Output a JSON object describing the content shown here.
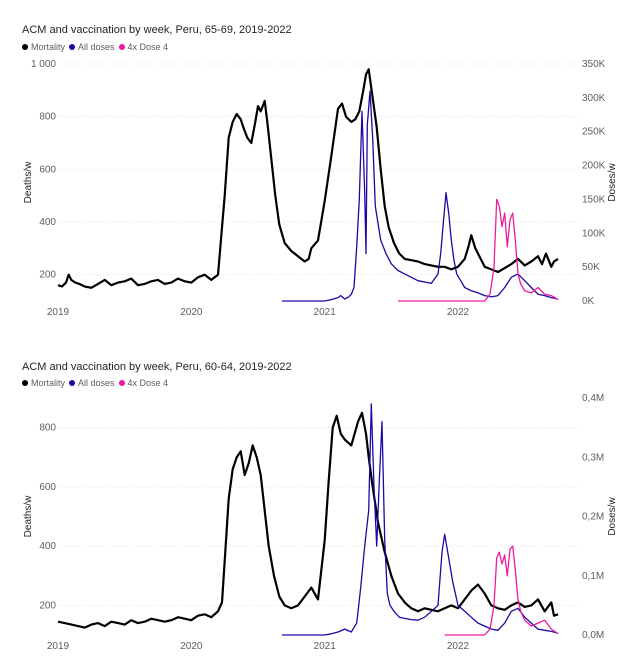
{
  "colors": {
    "mortality": "#000000",
    "all_doses": "#1a0aa3",
    "dose4": "#ec1ba0",
    "grid": "#e2e2e2",
    "text": "#605e5c"
  },
  "chart_data": [
    {
      "type": "line",
      "title": "ACM and vaccination by week, Peru, 65-69, 2019-2022",
      "ylabel": "Deaths/w",
      "y2label": "Doses/w",
      "ylim": [
        100,
        1000
      ],
      "y2lim": [
        0,
        350000
      ],
      "yticks": [
        200,
        400,
        600,
        800,
        1000
      ],
      "ytick_labels": [
        "200",
        "400",
        "600",
        "800",
        "1 000"
      ],
      "y2ticks": [
        0,
        50000,
        100000,
        150000,
        200000,
        250000,
        300000,
        350000
      ],
      "y2tick_labels": [
        "0K",
        "50K",
        "100K",
        "150K",
        "200K",
        "250K",
        "300K",
        "350K"
      ],
      "xlim": [
        2019.0,
        2022.9
      ],
      "xticks": [
        2019,
        2020,
        2021,
        2022
      ],
      "xtick_labels": [
        "2019",
        "2020",
        "2021",
        "2022"
      ],
      "grid": true,
      "legend_position": "top-left",
      "legend": [
        "Mortality",
        "All doses",
        "4x Dose 4"
      ],
      "series": [
        {
          "name": "Mortality",
          "axis": "left",
          "color": "#000000",
          "x": [
            2019.0,
            2019.03,
            2019.06,
            2019.08,
            2019.1,
            2019.13,
            2019.16,
            2019.2,
            2019.25,
            2019.3,
            2019.35,
            2019.4,
            2019.45,
            2019.5,
            2019.55,
            2019.6,
            2019.65,
            2019.7,
            2019.75,
            2019.8,
            2019.85,
            2019.9,
            2019.95,
            2020.0,
            2020.05,
            2020.1,
            2020.15,
            2020.2,
            2020.25,
            2020.28,
            2020.31,
            2020.34,
            2020.37,
            2020.39,
            2020.42,
            2020.45,
            2020.48,
            2020.5,
            2020.52,
            2020.55,
            2020.57,
            2020.6,
            2020.63,
            2020.66,
            2020.7,
            2020.75,
            2020.8,
            2020.85,
            2020.88,
            2020.9,
            2020.95,
            2021.0,
            2021.05,
            2021.1,
            2021.13,
            2021.16,
            2021.2,
            2021.23,
            2021.26,
            2021.29,
            2021.31,
            2021.33,
            2021.36,
            2021.39,
            2021.42,
            2021.45,
            2021.48,
            2021.52,
            2021.56,
            2021.6,
            2021.65,
            2021.7,
            2021.75,
            2021.8,
            2021.85,
            2021.9,
            2021.95,
            2022.0,
            2022.05,
            2022.08,
            2022.1,
            2022.13,
            2022.17,
            2022.2,
            2022.25,
            2022.3,
            2022.35,
            2022.4,
            2022.45,
            2022.5,
            2022.55,
            2022.6,
            2022.63,
            2022.66,
            2022.7,
            2022.72,
            2022.75
          ],
          "values": [
            160,
            155,
            170,
            200,
            180,
            170,
            165,
            155,
            150,
            165,
            180,
            160,
            170,
            175,
            185,
            160,
            165,
            175,
            180,
            165,
            170,
            185,
            175,
            170,
            190,
            200,
            180,
            200,
            500,
            720,
            780,
            810,
            790,
            760,
            720,
            700,
            780,
            840,
            820,
            860,
            780,
            640,
            500,
            390,
            320,
            290,
            270,
            250,
            260,
            300,
            330,
            480,
            650,
            830,
            850,
            800,
            780,
            790,
            820,
            900,
            960,
            980,
            870,
            760,
            600,
            460,
            380,
            320,
            280,
            260,
            255,
            250,
            240,
            235,
            230,
            230,
            220,
            230,
            260,
            310,
            350,
            300,
            260,
            230,
            220,
            210,
            225,
            240,
            260,
            235,
            250,
            270,
            240,
            280,
            230,
            250,
            260
          ]
        },
        {
          "name": "All doses",
          "axis": "right",
          "color": "#1a0aa3",
          "x": [
            2020.68,
            2020.8,
            2020.9,
            2021.0,
            2021.05,
            2021.1,
            2021.12,
            2021.15,
            2021.18,
            2021.2,
            2021.22,
            2021.24,
            2021.26,
            2021.28,
            2021.3,
            2021.31,
            2021.32,
            2021.34,
            2021.36,
            2021.38,
            2021.42,
            2021.46,
            2021.5,
            2021.55,
            2021.6,
            2021.65,
            2021.7,
            2021.75,
            2021.8,
            2021.85,
            2021.87,
            2021.89,
            2021.91,
            2021.93,
            2021.95,
            2021.97,
            2021.99,
            2022.02,
            2022.05,
            2022.1,
            2022.15,
            2022.2,
            2022.25,
            2022.3,
            2022.35,
            2022.4,
            2022.45,
            2022.5,
            2022.55,
            2022.6,
            2022.65,
            2022.7,
            2022.75
          ],
          "values": [
            0,
            0,
            0,
            0,
            2000,
            5000,
            8000,
            3000,
            6000,
            10000,
            20000,
            80000,
            150000,
            280000,
            160000,
            70000,
            260000,
            310000,
            240000,
            140000,
            90000,
            70000,
            55000,
            45000,
            40000,
            35000,
            30000,
            28000,
            26000,
            40000,
            70000,
            115000,
            160000,
            130000,
            90000,
            60000,
            40000,
            30000,
            20000,
            15000,
            12000,
            8000,
            6000,
            8000,
            20000,
            35000,
            40000,
            30000,
            20000,
            10000,
            8000,
            5000,
            3000
          ]
        },
        {
          "name": "4x Dose 4",
          "axis": "right",
          "color": "#ec1ba0",
          "x": [
            2021.55,
            2021.7,
            2021.85,
            2022.0,
            2022.1,
            2022.2,
            2022.24,
            2022.27,
            2022.29,
            2022.31,
            2022.33,
            2022.35,
            2022.37,
            2022.39,
            2022.41,
            2022.43,
            2022.45,
            2022.47,
            2022.5,
            2022.55,
            2022.6,
            2022.65,
            2022.7,
            2022.75
          ],
          "values": [
            0,
            0,
            0,
            0,
            0,
            0,
            10000,
            50000,
            150000,
            140000,
            110000,
            130000,
            80000,
            120000,
            130000,
            90000,
            40000,
            25000,
            15000,
            12000,
            20000,
            10000,
            8000,
            2000
          ]
        }
      ]
    },
    {
      "type": "line",
      "title": "ACM and vaccination by week, Peru, 60-64, 2019-2022",
      "ylabel": "Deaths/w",
      "y2label": "Doses/w",
      "ylim": [
        100,
        900
      ],
      "y2lim": [
        0,
        400000
      ],
      "yticks": [
        200,
        400,
        600,
        800
      ],
      "ytick_labels": [
        "200",
        "400",
        "600",
        "800"
      ],
      "y2ticks": [
        0,
        100000,
        200000,
        300000,
        400000
      ],
      "y2tick_labels": [
        "0,0M",
        "0,1M",
        "0,2M",
        "0,3M",
        "0,4M"
      ],
      "xlim": [
        2019.0,
        2022.9
      ],
      "xticks": [
        2019,
        2020,
        2021,
        2022
      ],
      "xtick_labels": [
        "2019",
        "2020",
        "2021",
        "2022"
      ],
      "grid": true,
      "legend_position": "top-left",
      "legend": [
        "Mortality",
        "All doses",
        "4x Dose 4"
      ],
      "series": [
        {
          "name": "Mortality",
          "axis": "left",
          "color": "#000000",
          "x": [
            2019.0,
            2019.05,
            2019.1,
            2019.15,
            2019.2,
            2019.25,
            2019.3,
            2019.35,
            2019.4,
            2019.45,
            2019.5,
            2019.55,
            2019.6,
            2019.65,
            2019.7,
            2019.75,
            2019.8,
            2019.85,
            2019.9,
            2019.95,
            2020.0,
            2020.05,
            2020.1,
            2020.15,
            2020.2,
            2020.23,
            2020.25,
            2020.28,
            2020.31,
            2020.34,
            2020.37,
            2020.4,
            2020.43,
            2020.46,
            2020.49,
            2020.52,
            2020.55,
            2020.58,
            2020.62,
            2020.66,
            2020.7,
            2020.75,
            2020.8,
            2020.85,
            2020.9,
            2020.95,
            2021.0,
            2021.03,
            2021.06,
            2021.09,
            2021.12,
            2021.15,
            2021.2,
            2021.25,
            2021.28,
            2021.31,
            2021.33,
            2021.36,
            2021.4,
            2021.45,
            2021.5,
            2021.55,
            2021.6,
            2021.65,
            2021.7,
            2021.75,
            2021.8,
            2021.85,
            2021.9,
            2021.95,
            2022.0,
            2022.05,
            2022.1,
            2022.15,
            2022.2,
            2022.25,
            2022.3,
            2022.35,
            2022.4,
            2022.45,
            2022.5,
            2022.55,
            2022.6,
            2022.65,
            2022.7,
            2022.72,
            2022.75
          ],
          "values": [
            145,
            140,
            135,
            130,
            125,
            135,
            140,
            130,
            145,
            140,
            135,
            150,
            140,
            145,
            155,
            150,
            145,
            150,
            160,
            155,
            150,
            165,
            170,
            160,
            180,
            210,
            350,
            560,
            660,
            700,
            720,
            640,
            680,
            740,
            700,
            640,
            520,
            400,
            300,
            230,
            200,
            190,
            200,
            230,
            260,
            220,
            420,
            620,
            800,
            840,
            780,
            760,
            740,
            820,
            850,
            780,
            700,
            600,
            480,
            380,
            300,
            240,
            210,
            190,
            180,
            190,
            185,
            180,
            190,
            200,
            190,
            220,
            250,
            270,
            240,
            200,
            190,
            185,
            200,
            210,
            195,
            200,
            220,
            180,
            210,
            165,
            170
          ]
        },
        {
          "name": "All doses",
          "axis": "right",
          "color": "#1a0aa3",
          "x": [
            2020.68,
            2020.8,
            2020.9,
            2021.0,
            2021.05,
            2021.1,
            2021.15,
            2021.2,
            2021.24,
            2021.27,
            2021.3,
            2021.33,
            2021.35,
            2021.37,
            2021.39,
            2021.41,
            2021.43,
            2021.45,
            2021.47,
            2021.49,
            2021.52,
            2021.56,
            2021.6,
            2021.65,
            2021.7,
            2021.75,
            2021.8,
            2021.85,
            2021.88,
            2021.9,
            2021.93,
            2021.96,
            2022.0,
            2022.05,
            2022.1,
            2022.15,
            2022.2,
            2022.25,
            2022.3,
            2022.35,
            2022.4,
            2022.45,
            2022.5,
            2022.55,
            2022.6,
            2022.65,
            2022.7,
            2022.75
          ],
          "values": [
            0,
            0,
            0,
            0,
            2000,
            5000,
            10000,
            5000,
            20000,
            80000,
            150000,
            210000,
            390000,
            250000,
            150000,
            260000,
            360000,
            160000,
            70000,
            50000,
            40000,
            30000,
            28000,
            26000,
            25000,
            30000,
            40000,
            50000,
            140000,
            170000,
            130000,
            90000,
            50000,
            40000,
            30000,
            20000,
            15000,
            10000,
            8000,
            20000,
            40000,
            45000,
            30000,
            20000,
            10000,
            8000,
            6000,
            3000
          ]
        },
        {
          "name": "4x Dose 4",
          "axis": "right",
          "color": "#ec1ba0",
          "x": [
            2021.9,
            2022.0,
            2022.1,
            2022.2,
            2022.24,
            2022.27,
            2022.29,
            2022.31,
            2022.33,
            2022.35,
            2022.37,
            2022.39,
            2022.41,
            2022.43,
            2022.45,
            2022.47,
            2022.5,
            2022.55,
            2022.6,
            2022.65,
            2022.7,
            2022.75
          ],
          "values": [
            0,
            0,
            0,
            0,
            10000,
            50000,
            130000,
            140000,
            120000,
            135000,
            100000,
            145000,
            150000,
            110000,
            60000,
            40000,
            25000,
            15000,
            20000,
            25000,
            10000,
            2000
          ]
        }
      ]
    }
  ]
}
